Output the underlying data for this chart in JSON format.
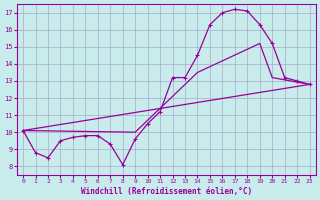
{
  "xlabel": "Windchill (Refroidissement éolien,°C)",
  "bg_color": "#c8ecec",
  "line_color": "#990099",
  "grid_color": "#aaaacc",
  "xlim": [
    -0.5,
    23.5
  ],
  "ylim": [
    7.5,
    17.5
  ],
  "yticks": [
    8,
    9,
    10,
    11,
    12,
    13,
    14,
    15,
    16,
    17
  ],
  "xticks": [
    0,
    1,
    2,
    3,
    4,
    5,
    6,
    7,
    8,
    9,
    10,
    11,
    12,
    13,
    14,
    15,
    16,
    17,
    18,
    19,
    20,
    21,
    22,
    23
  ],
  "curve_main": {
    "x": [
      0,
      1,
      2,
      3,
      4,
      5,
      6,
      7,
      8,
      9,
      10,
      11,
      12,
      13,
      14,
      15,
      16,
      17,
      18,
      19,
      20,
      21,
      22,
      23
    ],
    "y": [
      10.1,
      8.8,
      8.5,
      9.5,
      9.7,
      9.8,
      9.8,
      9.3,
      8.1,
      9.6,
      10.5,
      11.2,
      13.2,
      13.2,
      14.5,
      16.3,
      17.0,
      17.2,
      17.1,
      16.3,
      15.2,
      13.2,
      13.0,
      12.8
    ]
  },
  "curve_upper": {
    "x": [
      0,
      10,
      14,
      15,
      16,
      17,
      19,
      20,
      21,
      23
    ],
    "y": [
      10.1,
      10.5,
      14.5,
      16.3,
      17.0,
      17.2,
      16.3,
      15.2,
      13.2,
      12.8
    ]
  },
  "curve_lower_straight": {
    "x": [
      0,
      23
    ],
    "y": [
      10.1,
      12.8
    ]
  },
  "curve_mid": {
    "x": [
      0,
      9,
      14,
      19,
      20,
      23
    ],
    "y": [
      10.1,
      10.0,
      13.5,
      15.2,
      13.2,
      12.8
    ]
  }
}
